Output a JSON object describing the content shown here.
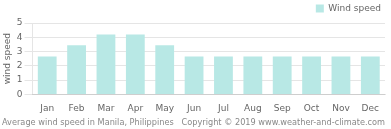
{
  "chart_data": {
    "type": "bar",
    "title": "Average wind speed in Manila, Philippines",
    "annotations": [
      "Copyright © 2019 www.weather-and-climate.com"
    ],
    "categories": [
      "Jan",
      "Feb",
      "Mar",
      "Apr",
      "May",
      "Jun",
      "Jul",
      "Aug",
      "Sep",
      "Oct",
      "Nov",
      "Dec"
    ],
    "series": [
      {
        "name": "Wind speed",
        "color": "#b8e8e5",
        "values": [
          2.65,
          3.45,
          4.2,
          4.2,
          3.45,
          2.65,
          2.65,
          2.65,
          2.65,
          2.65,
          2.65,
          2.65
        ]
      }
    ],
    "ylabel": "wind speed",
    "ylim": [
      0,
      5
    ],
    "yticks": [
      0,
      1,
      2,
      3,
      4,
      5
    ],
    "grid": true,
    "legend": "upper right"
  }
}
